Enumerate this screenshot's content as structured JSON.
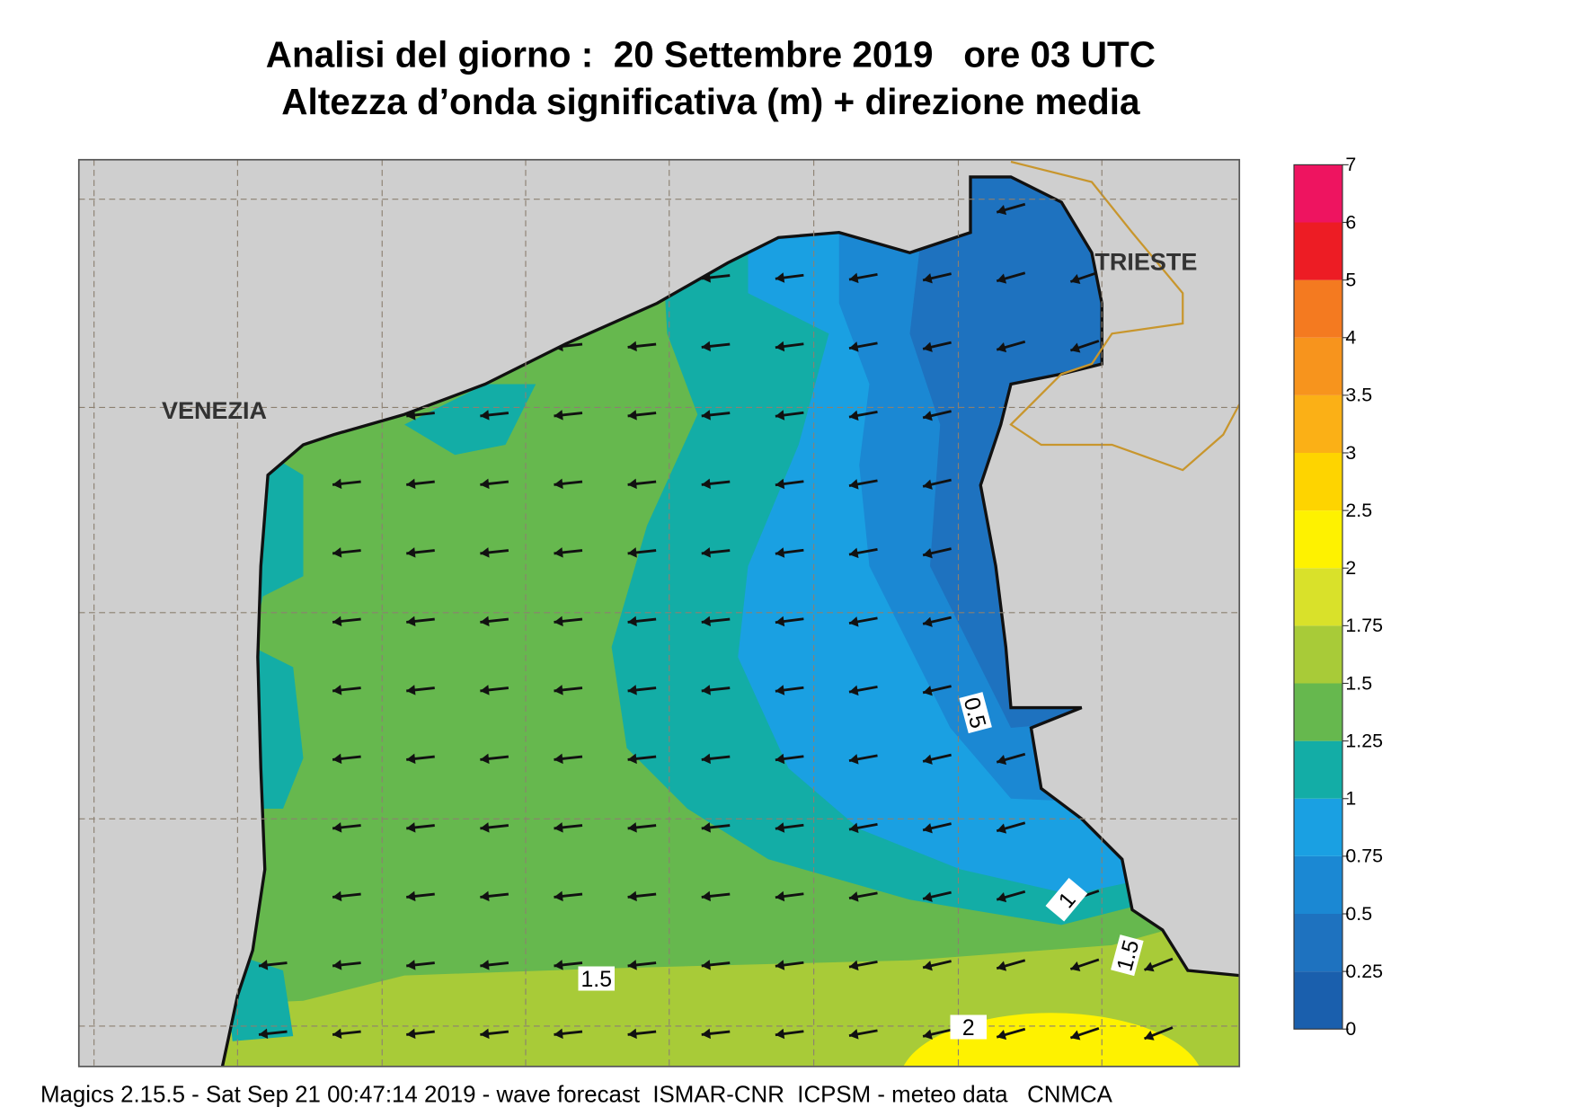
{
  "header": {
    "title": "Analisi del giorno :  20 Settembre 2019   ore 03 UTC",
    "subtitle": "Altezza d’onda significativa (m) + direzione media"
  },
  "map": {
    "places": [
      "VENEZIA",
      "TRIESTE"
    ],
    "contour_labels": [
      0.5,
      1,
      1.5,
      1.5,
      2
    ]
  },
  "colorbar": {
    "levels": [
      0,
      0.25,
      0.5,
      0.75,
      1,
      1.25,
      1.5,
      1.75,
      2,
      2.5,
      3,
      3.5,
      4,
      5,
      6,
      7
    ],
    "colors": [
      "#1a5fad",
      "#1e72bf",
      "#1b88d3",
      "#1aa0e2",
      "#13ada6",
      "#66b84e",
      "#a8cb38",
      "#d9e12a",
      "#fef200",
      "#fed400",
      "#fbb016",
      "#f7941d",
      "#f47a20",
      "#ed1c24",
      "#ee1460"
    ]
  },
  "footer": "Magics 2.15.5 - Sat Sep 21 00:47:14 2019 - wave forecast  ISMAR-CNR  ICPSM - meteo data   CNMCA"
}
